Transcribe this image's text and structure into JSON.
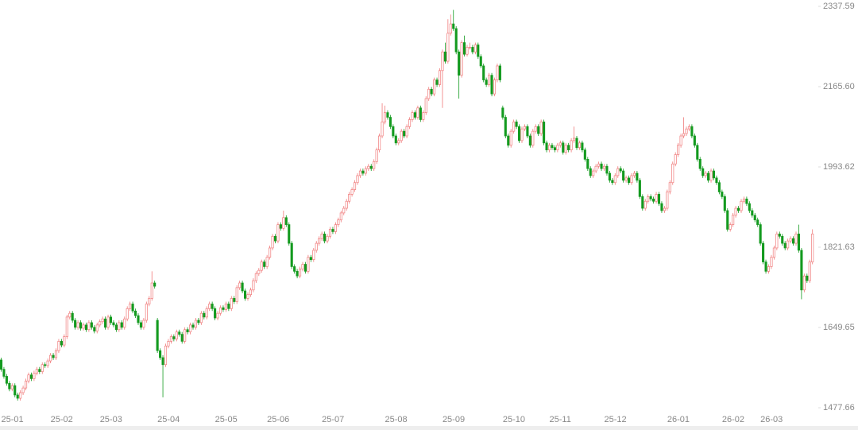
{
  "chart_data": {
    "type": "candlestick",
    "up_color": "#f07b7b",
    "down_color": "#139a1f",
    "ylim": [
      1477.66,
      2337.59
    ],
    "yticks": [
      2337.59,
      {
        "value": 2165.6,
        "label": "2165.60"
      },
      1993.62,
      1821.63,
      1649.65,
      1477.66
    ],
    "categories": [
      "25-01",
      null,
      null,
      null,
      null,
      null,
      null,
      null,
      null,
      null,
      null,
      null,
      null,
      null,
      null,
      null,
      null,
      null,
      "25-02",
      null,
      null,
      null,
      null,
      null,
      null,
      null,
      null,
      null,
      null,
      null,
      null,
      null,
      null,
      null,
      null,
      null,
      "25-03",
      null,
      null,
      null,
      null,
      null,
      null,
      null,
      null,
      null,
      null,
      null,
      null,
      null,
      null,
      null,
      null,
      null,
      null,
      null,
      null,
      "25-04",
      null,
      null,
      null,
      null,
      null,
      null,
      null,
      null,
      null,
      null,
      null,
      null,
      null,
      null,
      null,
      null,
      null,
      null,
      null,
      null,
      "25-05",
      null,
      null,
      null,
      null,
      null,
      null,
      null,
      null,
      null,
      null,
      null,
      null,
      null,
      null,
      null,
      null,
      null,
      null,
      "25-06",
      null,
      null,
      null,
      null,
      null,
      null,
      null,
      null,
      null,
      null,
      null,
      null,
      null,
      null,
      null,
      null,
      null,
      null,
      null,
      "25-07",
      null,
      null,
      null,
      null,
      null,
      null,
      null,
      null,
      null,
      null,
      null,
      null,
      null,
      null,
      null,
      null,
      null,
      null,
      null,
      null,
      null,
      null,
      "25-08",
      null,
      null,
      null,
      null,
      null,
      null,
      null,
      null,
      null,
      null,
      null,
      null,
      null,
      null,
      null,
      null,
      null,
      null,
      null,
      null,
      "25-09",
      null,
      null,
      null,
      null,
      null,
      null,
      null,
      null,
      null,
      null,
      null,
      null,
      null,
      null,
      null,
      null,
      null,
      null,
      null,
      null,
      null,
      "25-10",
      null,
      null,
      null,
      null,
      null,
      null,
      null,
      null,
      null,
      null,
      null,
      null,
      null,
      null,
      null,
      null,
      "25-11",
      null,
      null,
      null,
      null,
      null,
      null,
      null,
      null,
      null,
      null,
      null,
      null,
      null,
      null,
      null,
      null,
      null,
      null,
      null,
      "25-12",
      null,
      null,
      null,
      null,
      null,
      null,
      null,
      null,
      null,
      null,
      null,
      null,
      null,
      null,
      null,
      null,
      null,
      null,
      null,
      null,
      null,
      null,
      "26-01",
      null,
      null,
      null,
      null,
      null,
      null,
      null,
      null,
      null,
      null,
      null,
      null,
      null,
      null,
      null,
      null,
      null,
      null,
      null,
      "26-02",
      null,
      null,
      null,
      null,
      null,
      null,
      null,
      null,
      null,
      null,
      null,
      null,
      null,
      "26-03",
      null,
      null,
      null,
      null,
      null,
      null,
      null,
      null,
      null,
      null,
      null,
      null,
      null,
      null,
      null,
      null,
      null,
      null,
      null
    ],
    "open": [
      1580,
      1560,
      1545,
      1530,
      1518,
      1525,
      1505,
      1498,
      1510,
      1520,
      1535,
      1548,
      1540,
      1552,
      1560,
      1555,
      1570,
      1568,
      1578,
      1590,
      1585,
      1600,
      1620,
      1612,
      1630,
      1672,
      1680,
      1665,
      1650,
      1660,
      1648,
      1655,
      1645,
      1660,
      1650,
      1642,
      1655,
      1662,
      1668,
      1650,
      1672,
      1660,
      1655,
      1645,
      1660,
      1650,
      1668,
      1690,
      1700,
      1685,
      1675,
      1660,
      1650,
      1665,
      1700,
      1712,
      1745,
      1665,
      1600,
      1585,
      1570,
      1610,
      1620,
      1630,
      1625,
      1640,
      1635,
      1620,
      1645,
      1640,
      1655,
      1650,
      1665,
      1660,
      1680,
      1672,
      1690,
      1700,
      1690,
      1670,
      1680,
      1692,
      1688,
      1700,
      1690,
      1712,
      1705,
      1735,
      1745,
      1728,
      1712,
      1720,
      1730,
      1750,
      1765,
      1772,
      1790,
      1780,
      1800,
      1820,
      1845,
      1835,
      1870,
      1862,
      1885,
      1870,
      1830,
      1780,
      1770,
      1760,
      1775,
      1785,
      1770,
      1800,
      1795,
      1815,
      1830,
      1840,
      1850,
      1835,
      1845,
      1860,
      1855,
      1870,
      1880,
      1895,
      1905,
      1920,
      1935,
      1945,
      1960,
      1975,
      1985,
      1980,
      1990,
      1995,
      1990,
      2005,
      2030,
      2060,
      2090,
      2110,
      2100,
      2080,
      2060,
      2045,
      2050,
      2070,
      2060,
      2080,
      2095,
      2110,
      2100,
      2120,
      2095,
      2110,
      2140,
      2160,
      2150,
      2180,
      2170,
      2200,
      2240,
      2220,
      2280,
      2300,
      2290,
      2240,
      2190,
      2260,
      2235,
      2250,
      2250,
      2240,
      2255,
      2230,
      2210,
      2180,
      2170,
      2190,
      2150,
      2180,
      2210,
      2120,
      2100,
      2060,
      2040,
      2070,
      2090,
      2080,
      2050,
      2075,
      2080,
      2060,
      2040,
      2070,
      2080,
      2065,
      2090,
      2045,
      2030,
      2040,
      2035,
      2030,
      2040,
      2045,
      2025,
      2040,
      2030,
      2050,
      2055,
      2035,
      2045,
      2030,
      2010,
      1990,
      1975,
      1985,
      1995,
      2000,
      1990,
      1995,
      1980,
      1965,
      1960,
      1975,
      1990,
      1985,
      1965,
      1970,
      1960,
      1975,
      1980,
      1965,
      1930,
      1905,
      1920,
      1930,
      1925,
      1920,
      1935,
      1915,
      1900,
      1905,
      1940,
      1960,
      2000,
      2020,
      2040,
      2060,
      2065,
      2075,
      2080,
      2060,
      2040,
      2010,
      1990,
      1975,
      1980,
      1965,
      1985,
      1970,
      1960,
      1940,
      1930,
      1900,
      1860,
      1870,
      1890,
      1905,
      1900,
      1920,
      1925,
      1915,
      1900,
      1890,
      1880,
      1870,
      1830,
      1790,
      1770,
      1780,
      1800,
      1820,
      1850,
      1845,
      1830,
      1820,
      1835,
      1840,
      1830,
      1850,
      1815,
      1730,
      1760,
      1750,
      1790
    ],
    "high": [
      1585,
      1565,
      1550,
      1535,
      1530,
      1530,
      1510,
      1515,
      1525,
      1540,
      1553,
      1553,
      1557,
      1565,
      1565,
      1575,
      1575,
      1583,
      1595,
      1595,
      1605,
      1625,
      1625,
      1635,
      1677,
      1685,
      1685,
      1670,
      1665,
      1665,
      1660,
      1660,
      1665,
      1665,
      1655,
      1660,
      1667,
      1673,
      1673,
      1677,
      1677,
      1665,
      1660,
      1665,
      1665,
      1673,
      1695,
      1705,
      1705,
      1690,
      1680,
      1665,
      1670,
      1705,
      1717,
      1770,
      1750,
      1670,
      1605,
      1590,
      1615,
      1625,
      1635,
      1635,
      1645,
      1645,
      1640,
      1650,
      1650,
      1660,
      1660,
      1670,
      1670,
      1685,
      1685,
      1695,
      1705,
      1705,
      1695,
      1685,
      1697,
      1697,
      1705,
      1705,
      1717,
      1717,
      1740,
      1750,
      1750,
      1733,
      1725,
      1735,
      1755,
      1770,
      1777,
      1795,
      1795,
      1805,
      1825,
      1850,
      1850,
      1875,
      1875,
      1900,
      1890,
      1875,
      1835,
      1785,
      1775,
      1780,
      1790,
      1790,
      1805,
      1805,
      1820,
      1835,
      1845,
      1855,
      1855,
      1850,
      1865,
      1865,
      1875,
      1885,
      1900,
      1910,
      1925,
      1940,
      1950,
      1965,
      1980,
      1990,
      1990,
      1995,
      2000,
      2000,
      2010,
      2035,
      2065,
      2130,
      2125,
      2115,
      2105,
      2085,
      2065,
      2055,
      2075,
      2075,
      2085,
      2100,
      2115,
      2115,
      2125,
      2125,
      2115,
      2145,
      2165,
      2165,
      2185,
      2185,
      2205,
      2245,
      2260,
      2310,
      2320,
      2330,
      2295,
      2245,
      2265,
      2275,
      2255,
      2260,
      2255,
      2260,
      2260,
      2235,
      2215,
      2185,
      2195,
      2195,
      2185,
      2215,
      2215,
      2125,
      2105,
      2065,
      2075,
      2095,
      2095,
      2085,
      2080,
      2085,
      2085,
      2065,
      2075,
      2085,
      2085,
      2095,
      2095,
      2050,
      2045,
      2045,
      2040,
      2045,
      2050,
      2050,
      2045,
      2045,
      2055,
      2080,
      2060,
      2050,
      2050,
      2035,
      2015,
      1995,
      1990,
      2000,
      2005,
      2005,
      2000,
      2000,
      1985,
      1970,
      1980,
      1995,
      1995,
      1990,
      1975,
      1975,
      1980,
      1985,
      1985,
      1970,
      1935,
      1925,
      1935,
      1935,
      1930,
      1940,
      1940,
      1920,
      1910,
      1945,
      1965,
      2005,
      2025,
      2045,
      2065,
      2100,
      2080,
      2085,
      2085,
      2065,
      2045,
      2015,
      1995,
      1985,
      1985,
      1990,
      1990,
      1975,
      1965,
      1945,
      1935,
      1905,
      1875,
      1895,
      1910,
      1910,
      1925,
      1930,
      1930,
      1920,
      1905,
      1895,
      1885,
      1875,
      1835,
      1795,
      1785,
      1805,
      1825,
      1855,
      1855,
      1850,
      1835,
      1840,
      1845,
      1845,
      1855,
      1870,
      1820,
      1765,
      1765,
      1795,
      1860
    ],
    "low": [
      1555,
      1540,
      1525,
      1513,
      1513,
      1500,
      1493,
      1493,
      1505,
      1515,
      1530,
      1535,
      1535,
      1547,
      1550,
      1550,
      1563,
      1563,
      1573,
      1580,
      1580,
      1595,
      1607,
      1607,
      1625,
      1667,
      1660,
      1645,
      1645,
      1643,
      1643,
      1640,
      1640,
      1645,
      1637,
      1637,
      1650,
      1657,
      1645,
      1645,
      1655,
      1650,
      1640,
      1640,
      1645,
      1645,
      1663,
      1685,
      1680,
      1670,
      1655,
      1645,
      1645,
      1660,
      1695,
      1707,
      1733,
      1595,
      1580,
      1500,
      1565,
      1605,
      1615,
      1620,
      1620,
      1630,
      1615,
      1615,
      1635,
      1635,
      1645,
      1645,
      1655,
      1655,
      1667,
      1667,
      1685,
      1685,
      1665,
      1665,
      1675,
      1683,
      1683,
      1685,
      1685,
      1700,
      1700,
      1730,
      1723,
      1707,
      1707,
      1715,
      1725,
      1745,
      1760,
      1767,
      1775,
      1775,
      1795,
      1815,
      1830,
      1830,
      1857,
      1857,
      1865,
      1825,
      1775,
      1765,
      1755,
      1755,
      1770,
      1765,
      1765,
      1790,
      1790,
      1810,
      1825,
      1835,
      1830,
      1830,
      1840,
      1850,
      1850,
      1865,
      1875,
      1890,
      1900,
      1915,
      1930,
      1940,
      1955,
      1970,
      1975,
      1975,
      1985,
      1985,
      1985,
      2000,
      2025,
      2055,
      2085,
      2095,
      2075,
      2055,
      2040,
      2040,
      2045,
      2055,
      2055,
      2075,
      2090,
      2095,
      2095,
      2090,
      2090,
      2105,
      2135,
      2145,
      2145,
      2165,
      2165,
      2120,
      2215,
      2215,
      2275,
      2285,
      2235,
      2140,
      2185,
      2230,
      2230,
      2245,
      2235,
      2235,
      2225,
      2205,
      2175,
      2165,
      2165,
      2145,
      2145,
      2175,
      2175,
      2095,
      2055,
      2035,
      2035,
      2065,
      2075,
      2045,
      2045,
      2070,
      2055,
      2035,
      2035,
      2065,
      2060,
      2060,
      2040,
      2025,
      2025,
      2030,
      2025,
      2025,
      2035,
      2020,
      2020,
      2025,
      2025,
      2045,
      2030,
      2030,
      2025,
      2005,
      1985,
      1970,
      1970,
      1980,
      1990,
      1985,
      1985,
      1975,
      1960,
      1955,
      1955,
      1970,
      1980,
      1960,
      1960,
      1955,
      1955,
      1970,
      1960,
      1925,
      1900,
      1900,
      1915,
      1920,
      1915,
      1915,
      1910,
      1895,
      1895,
      1900,
      1935,
      1955,
      1995,
      2015,
      2035,
      2055,
      2060,
      2070,
      2055,
      2035,
      2005,
      1985,
      1970,
      1970,
      1960,
      1960,
      1965,
      1955,
      1935,
      1925,
      1895,
      1855,
      1855,
      1865,
      1885,
      1895,
      1895,
      1915,
      1910,
      1895,
      1885,
      1875,
      1865,
      1825,
      1785,
      1765,
      1765,
      1775,
      1795,
      1815,
      1840,
      1825,
      1815,
      1815,
      1830,
      1825,
      1825,
      1810,
      1710,
      1725,
      1745,
      1745,
      1785
    ],
    "close": [
      1560,
      1545,
      1530,
      1518,
      1525,
      1505,
      1498,
      1510,
      1520,
      1535,
      1548,
      1540,
      1552,
      1560,
      1555,
      1570,
      1568,
      1578,
      1590,
      1585,
      1600,
      1620,
      1612,
      1630,
      1672,
      1680,
      1665,
      1650,
      1660,
      1648,
      1655,
      1645,
      1660,
      1650,
      1642,
      1655,
      1662,
      1668,
      1650,
      1672,
      1660,
      1655,
      1645,
      1660,
      1650,
      1668,
      1690,
      1700,
      1685,
      1675,
      1660,
      1650,
      1665,
      1700,
      1712,
      1745,
      1738,
      1600,
      1585,
      1570,
      1610,
      1620,
      1630,
      1625,
      1640,
      1635,
      1620,
      1645,
      1640,
      1655,
      1650,
      1665,
      1660,
      1680,
      1672,
      1690,
      1700,
      1690,
      1670,
      1680,
      1692,
      1688,
      1700,
      1690,
      1712,
      1705,
      1735,
      1745,
      1728,
      1712,
      1720,
      1730,
      1750,
      1765,
      1772,
      1790,
      1780,
      1800,
      1820,
      1845,
      1835,
      1870,
      1862,
      1885,
      1870,
      1830,
      1780,
      1770,
      1760,
      1775,
      1785,
      1770,
      1800,
      1795,
      1815,
      1830,
      1840,
      1850,
      1835,
      1845,
      1860,
      1855,
      1870,
      1880,
      1895,
      1905,
      1920,
      1935,
      1945,
      1960,
      1975,
      1985,
      1980,
      1990,
      1995,
      1990,
      2005,
      2030,
      2060,
      2090,
      2110,
      2100,
      2080,
      2060,
      2045,
      2050,
      2070,
      2060,
      2080,
      2095,
      2110,
      2100,
      2120,
      2095,
      2110,
      2140,
      2160,
      2150,
      2180,
      2170,
      2200,
      2240,
      2220,
      2280,
      2300,
      2290,
      2240,
      2190,
      2260,
      2235,
      2250,
      2250,
      2240,
      2255,
      2230,
      2210,
      2180,
      2170,
      2190,
      2150,
      2180,
      2210,
      2180,
      2100,
      2060,
      2040,
      2070,
      2090,
      2080,
      2050,
      2075,
      2080,
      2060,
      2040,
      2070,
      2080,
      2065,
      2090,
      2045,
      2030,
      2040,
      2035,
      2030,
      2040,
      2045,
      2025,
      2040,
      2030,
      2050,
      2055,
      2035,
      2045,
      2030,
      2010,
      1990,
      1975,
      1985,
      1995,
      2000,
      1990,
      1995,
      1980,
      1965,
      1960,
      1975,
      1990,
      1985,
      1965,
      1970,
      1960,
      1975,
      1980,
      1965,
      1930,
      1905,
      1920,
      1930,
      1925,
      1920,
      1935,
      1915,
      1900,
      1905,
      1940,
      1960,
      2000,
      2020,
      2040,
      2060,
      2065,
      2075,
      2080,
      2060,
      2040,
      2010,
      1990,
      1975,
      1980,
      1965,
      1985,
      1970,
      1960,
      1940,
      1930,
      1900,
      1860,
      1870,
      1890,
      1905,
      1900,
      1920,
      1925,
      1915,
      1900,
      1890,
      1880,
      1870,
      1830,
      1790,
      1770,
      1780,
      1800,
      1820,
      1850,
      1845,
      1830,
      1820,
      1835,
      1840,
      1830,
      1850,
      1815,
      1730,
      1760,
      1750,
      1790,
      1850
    ]
  }
}
